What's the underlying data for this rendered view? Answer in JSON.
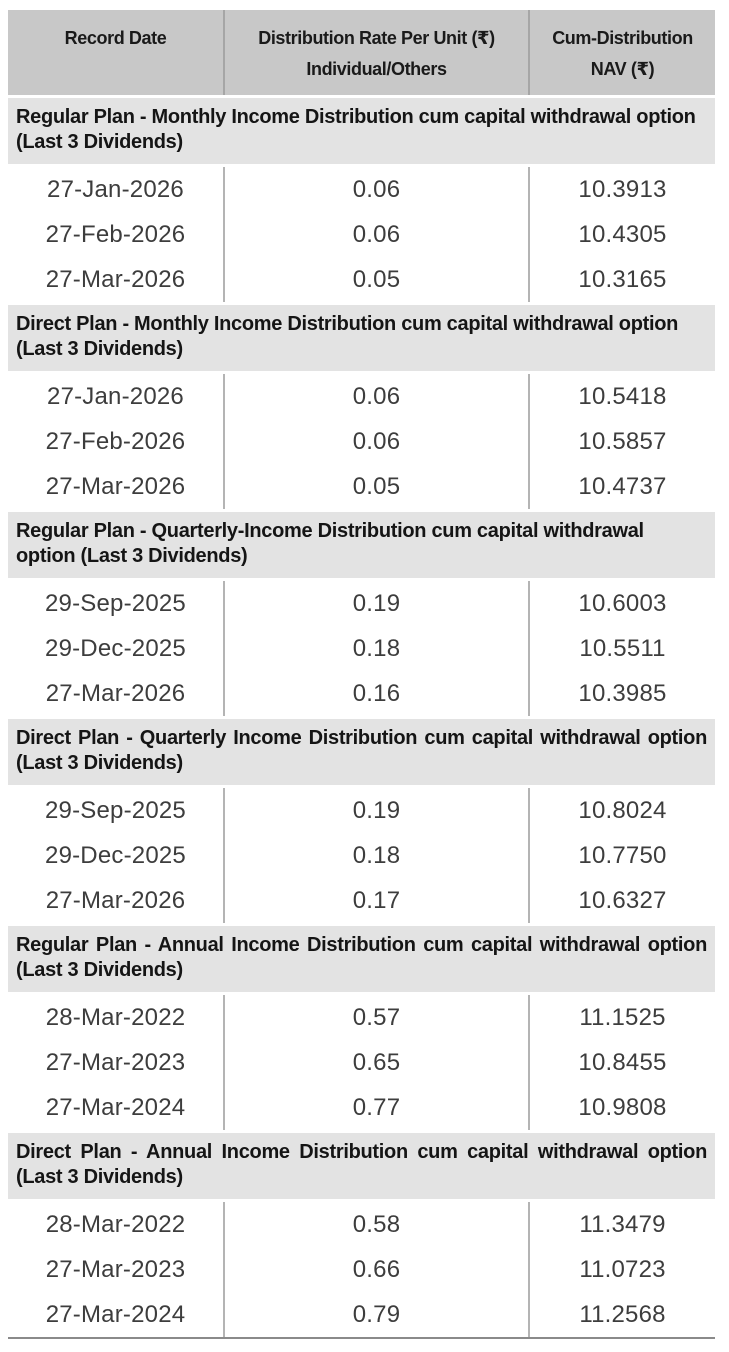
{
  "table": {
    "columns": [
      {
        "lines": [
          "Record Date"
        ]
      },
      {
        "lines": [
          "Distribution Rate Per Unit (₹)",
          "Individual/Others"
        ]
      },
      {
        "lines": [
          "Cum-Distribution",
          "NAV (₹)"
        ]
      }
    ],
    "sections": [
      {
        "title": "Regular Plan - Monthly Income Distribution cum capital withdrawal option (Last 3 Dividends)",
        "align": "left",
        "rows": [
          [
            "27-Jan-2026",
            "0.06",
            "10.3913"
          ],
          [
            "27-Feb-2026",
            "0.06",
            "10.4305"
          ],
          [
            "27-Mar-2026",
            "0.05",
            "10.3165"
          ]
        ]
      },
      {
        "title": "Direct Plan - Monthly Income Distribution cum capital withdrawal option (Last 3 Dividends)",
        "align": "left",
        "rows": [
          [
            "27-Jan-2026",
            "0.06",
            "10.5418"
          ],
          [
            "27-Feb-2026",
            "0.06",
            "10.5857"
          ],
          [
            "27-Mar-2026",
            "0.05",
            "10.4737"
          ]
        ]
      },
      {
        "title": "Regular Plan - Quarterly-Income Distribution cum capital withdrawal option (Last 3 Dividends)",
        "align": "left",
        "rows": [
          [
            "29-Sep-2025",
            "0.19",
            "10.6003"
          ],
          [
            "29-Dec-2025",
            "0.18",
            "10.5511"
          ],
          [
            "27-Mar-2026",
            "0.16",
            "10.3985"
          ]
        ]
      },
      {
        "title": "Direct Plan - Quarterly Income Distribution cum capital withdrawal option (Last 3 Dividends)",
        "align": "justify",
        "rows": [
          [
            "29-Sep-2025",
            "0.19",
            "10.8024"
          ],
          [
            "29-Dec-2025",
            "0.18",
            "10.7750"
          ],
          [
            "27-Mar-2026",
            "0.17",
            "10.6327"
          ]
        ]
      },
      {
        "title": "Regular Plan - Annual Income Distribution cum capital withdrawal option (Last 3 Dividends)",
        "align": "justify",
        "rows": [
          [
            "28-Mar-2022",
            "0.57",
            "11.1525"
          ],
          [
            "27-Mar-2023",
            "0.65",
            "10.8455"
          ],
          [
            "27-Mar-2024",
            "0.77",
            "10.9808"
          ]
        ]
      },
      {
        "title": "Direct Plan - Annual Income Distribution cum capital withdrawal option (Last 3 Dividends)",
        "align": "justify",
        "rows": [
          [
            "28-Mar-2022",
            "0.58",
            "11.3479"
          ],
          [
            "27-Mar-2023",
            "0.66",
            "11.0723"
          ],
          [
            "27-Mar-2024",
            "0.79",
            "11.2568"
          ]
        ]
      }
    ],
    "colors": {
      "header_bg": "#c8c8c8",
      "section_bg": "#e3e3e3",
      "header_divider": "#a6a6a6",
      "data_divider": "#b4b4b4",
      "bottom_rule": "#8a8a8a",
      "header_text": "#1a1a1a",
      "data_text": "#3d3d3d"
    }
  }
}
